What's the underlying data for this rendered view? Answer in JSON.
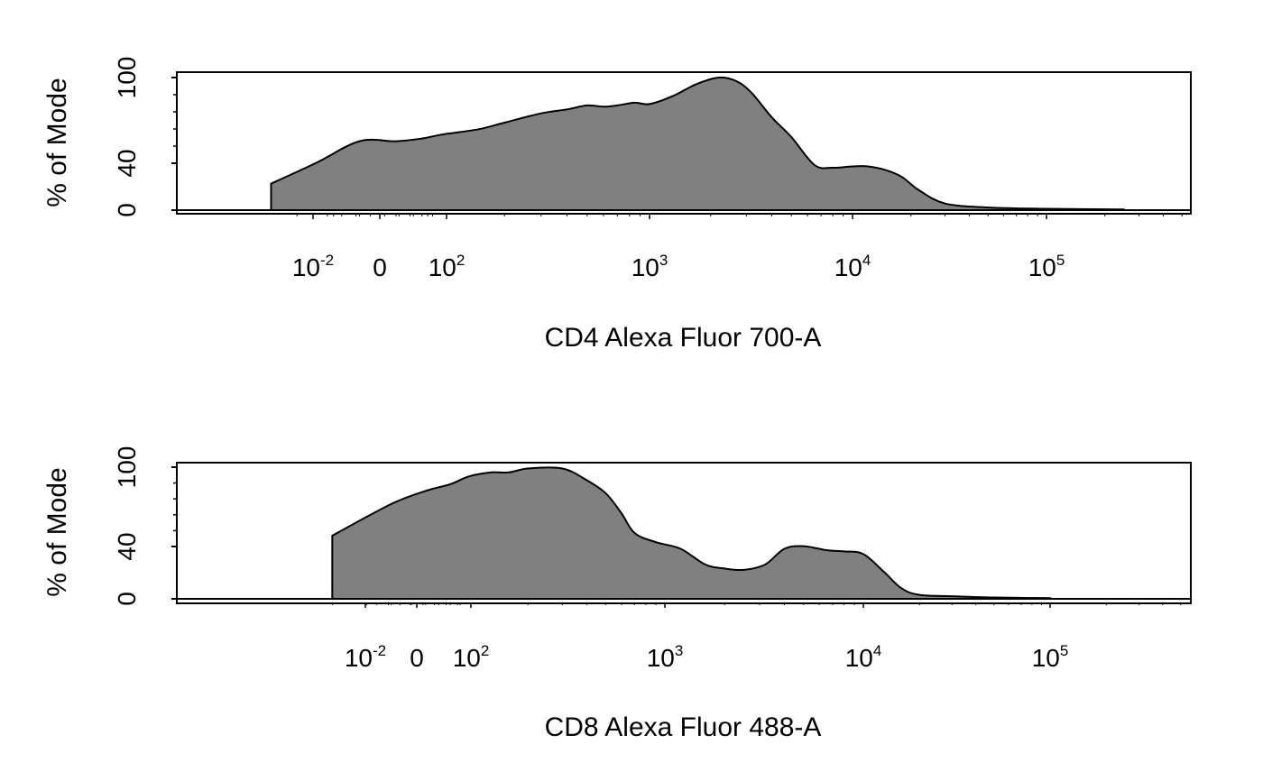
{
  "chart_data": [
    {
      "type": "area",
      "xlabel": "CD4 Alexa Fluor 700-A",
      "ylabel": "% of Mode",
      "x_scale": "logicle",
      "y_ticks": [
        "0",
        "40",
        "100"
      ],
      "x_ticks": [
        {
          "label": "10",
          "sup": "-2"
        },
        {
          "label": "0",
          "sup": ""
        },
        {
          "label": "10",
          "sup": "2"
        },
        {
          "label": "10",
          "sup": "3"
        },
        {
          "label": "10",
          "sup": "4"
        },
        {
          "label": "10",
          "sup": "5"
        }
      ],
      "ylim": [
        0,
        100
      ],
      "fill_color": "#808080",
      "series": [
        {
          "x": [
            15,
            25,
            40,
            60,
            80,
            100,
            150,
            200,
            300,
            400,
            500,
            600,
            700,
            850,
            1000,
            1300,
            1700,
            2200,
            2700,
            3200,
            4000,
            5000,
            6500,
            8000,
            10000,
            12000,
            15000,
            18000,
            22000,
            30000,
            50000,
            100000,
            250000
          ],
          "values": [
            20,
            36,
            52,
            52,
            54,
            57,
            61,
            66,
            73,
            76,
            79,
            78,
            79,
            81,
            80,
            86,
            95,
            100,
            97,
            88,
            70,
            55,
            34,
            32,
            33,
            33,
            30,
            25,
            15,
            5,
            2,
            1,
            0.5
          ]
        }
      ]
    },
    {
      "type": "area",
      "xlabel": "CD8 Alexa Fluor 488-A",
      "ylabel": "% of Mode",
      "x_scale": "logicle",
      "y_ticks": [
        "0",
        "40",
        "100"
      ],
      "x_ticks": [
        {
          "label": "10",
          "sup": "-2"
        },
        {
          "label": "0",
          "sup": ""
        },
        {
          "label": "10",
          "sup": "2"
        },
        {
          "label": "10",
          "sup": "3"
        },
        {
          "label": "10",
          "sup": "4"
        },
        {
          "label": "10",
          "sup": "5"
        }
      ],
      "ylim": [
        0,
        100
      ],
      "fill_color": "#808080",
      "series": [
        {
          "x": [
            20,
            40,
            60,
            80,
            100,
            130,
            160,
            200,
            300,
            400,
            500,
            600,
            700,
            900,
            1200,
            1600,
            2000,
            2500,
            3200,
            4000,
            5000,
            6500,
            8000,
            10000,
            13000,
            16000,
            20000,
            30000,
            50000,
            100000
          ],
          "values": [
            48,
            72,
            82,
            87,
            93,
            96,
            96,
            99,
            99,
            90,
            80,
            65,
            50,
            43,
            38,
            26,
            23,
            22,
            26,
            38,
            40,
            37,
            36,
            34,
            20,
            8,
            3,
            2,
            1,
            0.5
          ]
        }
      ]
    }
  ]
}
